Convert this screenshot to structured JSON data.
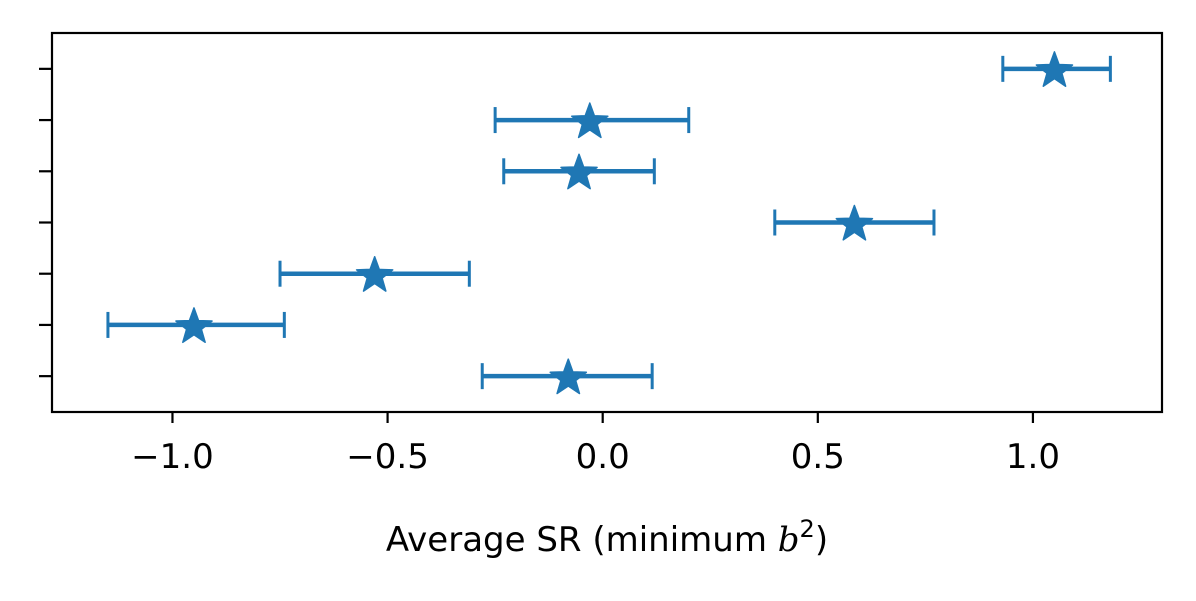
{
  "chart_data": {
    "type": "scatter",
    "title": "",
    "xlabel": "Average SR (minimum b²)",
    "xlabel_main": "Average SR (minimum ",
    "xlabel_var": "b",
    "xlabel_sup": "2",
    "xlabel_close": ")",
    "ylabel": "",
    "xlim": [
      -1.28,
      1.3
    ],
    "ylim": [
      0.3,
      7.7
    ],
    "grid": false,
    "legend": null,
    "marker": "star",
    "color": "#1f77b4",
    "xticks": [
      -1.0,
      -0.5,
      0.0,
      0.5,
      1.0
    ],
    "xtick_labels": [
      "−1.0",
      "−0.5",
      "0.0",
      "0.5",
      "1.0"
    ],
    "yticks": [
      1,
      2,
      3,
      4,
      5,
      6,
      7
    ],
    "ytick_labels": [
      "",
      "",
      "",
      "",
      "",
      "",
      ""
    ],
    "points": [
      {
        "y": 7,
        "x": 1.05,
        "xerr_low": 0.93,
        "xerr_high": 1.18
      },
      {
        "y": 6,
        "x": -0.03,
        "xerr_low": -0.25,
        "xerr_high": 0.2
      },
      {
        "y": 5,
        "x": -0.055,
        "xerr_low": -0.23,
        "xerr_high": 0.12
      },
      {
        "y": 4,
        "x": 0.585,
        "xerr_low": 0.4,
        "xerr_high": 0.77
      },
      {
        "y": 3,
        "x": -0.53,
        "xerr_low": -0.75,
        "xerr_high": -0.31
      },
      {
        "y": 2,
        "x": -0.95,
        "xerr_low": -1.15,
        "xerr_high": -0.74
      },
      {
        "y": 1,
        "x": -0.08,
        "xerr_low": -0.28,
        "xerr_high": 0.115
      }
    ]
  }
}
